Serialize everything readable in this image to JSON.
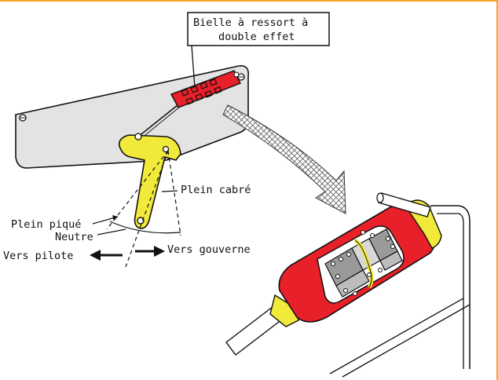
{
  "labels": {
    "callout_line1": "Bielle à ressort à",
    "callout_line2": "double effet",
    "plein_cabre": "Plein cabré",
    "plein_pique": "Plein piqué",
    "neutre": "Neutre",
    "vers_pilote": "Vers pilote",
    "vers_gouverne": "Vers gouverne"
  },
  "colors": {
    "spring_rod_red": "#e8202a",
    "lever_yellow": "#f2ea3a",
    "panel_grey": "#e3e3e3",
    "outline": "#111111",
    "mesh_grey": "#6a6a6a",
    "frame_orange": "#f5a623"
  }
}
